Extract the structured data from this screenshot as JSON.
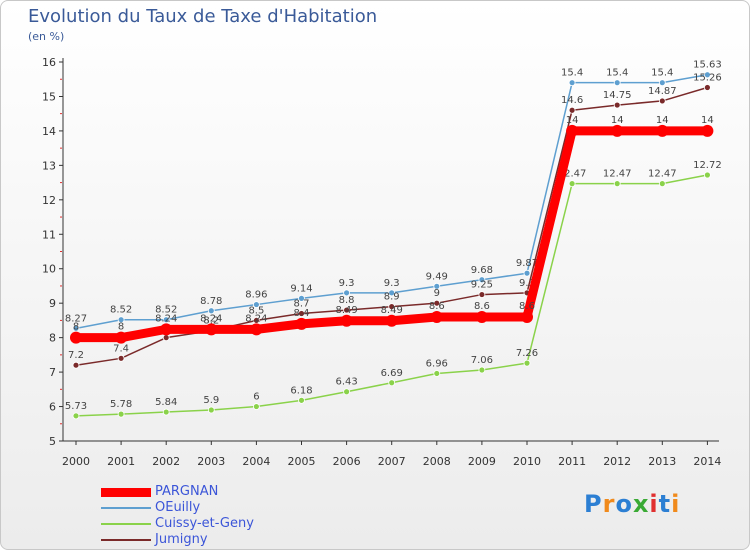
{
  "chart_data": {
    "type": "line",
    "title": "Evolution du Taux de Taxe d'Habitation",
    "subtitle": "(en %)",
    "x": [
      "2000",
      "2001",
      "2002",
      "2003",
      "2004",
      "2005",
      "2006",
      "2007",
      "2008",
      "2009",
      "2010",
      "2011",
      "2012",
      "2013",
      "2014"
    ],
    "ylim": [
      5,
      16
    ],
    "yticks": [
      "5",
      "6",
      "7",
      "8",
      "9",
      "10",
      "11",
      "12",
      "13",
      "14",
      "15",
      "16"
    ],
    "grid": false,
    "legend_position": "bottom-left",
    "series": [
      {
        "name": "PARGNAN",
        "color": "#ff0000",
        "values": [
          8,
          8,
          8.24,
          8.24,
          8.24,
          8.4,
          8.49,
          8.49,
          8.6,
          8.6,
          8.6,
          14,
          14,
          14,
          14
        ],
        "labels": [
          "8",
          "8",
          "8.24",
          "8.24",
          "8.24",
          "8.4",
          "8.49",
          "8.49",
          "8.6",
          "8.6",
          "8.6",
          "14",
          "14",
          "14",
          "14"
        ]
      },
      {
        "name": "OEuilly",
        "color": "#5e9fd0",
        "values": [
          8.27,
          8.52,
          8.52,
          8.78,
          8.96,
          9.14,
          9.3,
          9.3,
          9.49,
          9.68,
          9.87,
          15.4,
          15.4,
          15.4,
          15.63
        ],
        "labels": [
          "8.27",
          "8.52",
          "8.52",
          "8.78",
          "8.96",
          "9.14",
          "9.3",
          "9.3",
          "9.49",
          "9.68",
          "9.87",
          "15.4",
          "15.4",
          "15.4",
          "15.63"
        ]
      },
      {
        "name": "Cuissy-et-Geny",
        "color": "#8ad24a",
        "values": [
          5.73,
          5.78,
          5.84,
          5.9,
          6,
          6.18,
          6.43,
          6.69,
          6.96,
          7.06,
          7.26,
          12.47,
          12.47,
          12.47,
          12.72
        ],
        "labels": [
          "5.73",
          "5.78",
          "5.84",
          "5.9",
          "6",
          "6.18",
          "6.43",
          "6.69",
          "6.96",
          "7.06",
          "7.26",
          "12.47",
          "12.47",
          "12.47",
          "12.72"
        ]
      },
      {
        "name": "Jumigny",
        "color": "#7a2a2a",
        "values": [
          7.2,
          7.4,
          8,
          8.2,
          8.5,
          8.7,
          8.8,
          8.9,
          9,
          9.25,
          9.3,
          14.6,
          14.75,
          14.87,
          15.26
        ],
        "labels": [
          "7.2",
          "7.4",
          "8",
          "8.2",
          "8.5",
          "8.7",
          "8.8",
          "8.9",
          "9",
          "9.25",
          "9.3",
          "14.6",
          "14.75",
          "14.87",
          "15.26"
        ]
      }
    ]
  },
  "logo": {
    "text": "Proxiti",
    "colors": [
      "#2c7fd3",
      "#f08a1c",
      "#2c7fd3",
      "#3aaa35",
      "#e03030",
      "#2c7fd3",
      "#f08a1c"
    ]
  }
}
